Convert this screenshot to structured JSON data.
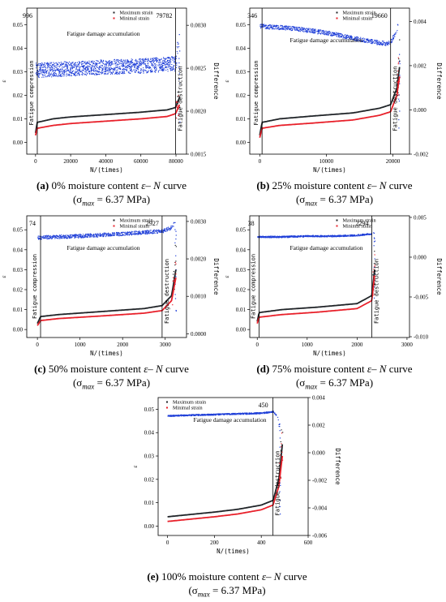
{
  "figure": {
    "caption_text_parts": {
      "moisture_suffix": "moisture content",
      "curve_label": "curve",
      "sigma_prefix": "(σ",
      "sigma_sub": "max",
      "sigma_value": " = 6.37 MPa)"
    }
  },
  "colors": {
    "max": "#202428",
    "min": "#e8202a",
    "diff": "#1f3fd8",
    "line": "#000000"
  },
  "chart_data": [
    {
      "type": "scatter",
      "panel_label": "(a)",
      "moisture": "0%",
      "xlabel": "N/(times)",
      "ylabel": "ε",
      "y2label": "Difference",
      "xlim": [
        -5000,
        86000
      ],
      "ylim": [
        -0.005,
        0.057
      ],
      "y2lim": [
        0.0015,
        0.0032
      ],
      "xticks": [
        0,
        20000,
        40000,
        60000,
        80000
      ],
      "xticklabels": [
        "0",
        "20000",
        "40000",
        "60000",
        "80000"
      ],
      "yticks": [
        0.0,
        0.01,
        0.02,
        0.03,
        0.04,
        0.05
      ],
      "yticklabels": [
        "0.00",
        "0.01",
        "0.02",
        "0.03",
        "0.04",
        "0.05"
      ],
      "y2ticks": [
        0.0015,
        0.002,
        0.0025,
        0.003
      ],
      "y2ticklabels": [
        "0.0015",
        "0.0020",
        "0.0025",
        "0.0030"
      ],
      "vlines": [
        996,
        79782
      ],
      "vline_labels": [
        "996",
        "79782"
      ],
      "annotations": {
        "accumulation": "Fatigue damage accumulation",
        "compression": "Fatigue compression",
        "destruction": "Fatigue destruction"
      },
      "legend": [
        "Maximum strain",
        "Minimal strain"
      ],
      "series": [
        {
          "name": "Maximum strain",
          "x": [
            0,
            996,
            10000,
            20000,
            40000,
            60000,
            75000,
            79782,
            82000
          ],
          "y": [
            0.004,
            0.0085,
            0.01,
            0.0108,
            0.0118,
            0.0128,
            0.0138,
            0.0148,
            0.019
          ]
        },
        {
          "name": "Minimal strain",
          "x": [
            0,
            996,
            10000,
            20000,
            40000,
            60000,
            75000,
            79782,
            82000
          ],
          "y": [
            0.003,
            0.006,
            0.0072,
            0.008,
            0.009,
            0.01,
            0.011,
            0.0122,
            0.016
          ]
        },
        {
          "name": "Difference",
          "x": [
            0,
            20000,
            40000,
            60000,
            79782,
            82000
          ],
          "y": [
            0.00248,
            0.0025,
            0.00252,
            0.00253,
            0.00256,
            0.003
          ]
        }
      ]
    },
    {
      "type": "scatter",
      "panel_label": "(b)",
      "moisture": "25%",
      "xlabel": "N/(times)",
      "ylabel": "ε",
      "y2label": "Difference",
      "xlim": [
        -1500,
        22500
      ],
      "ylim": [
        -0.005,
        0.057
      ],
      "y2lim": [
        -0.002,
        0.0046
      ],
      "xticks": [
        0,
        10000,
        20000
      ],
      "xticklabels": [
        "0",
        "10000",
        "20000"
      ],
      "yticks": [
        0.0,
        0.01,
        0.02,
        0.03,
        0.04,
        0.05
      ],
      "yticklabels": [
        "0.00",
        "0.01",
        "0.02",
        "0.03",
        "0.04",
        "0.05"
      ],
      "y2ticks": [
        -0.002,
        0.0,
        0.002,
        0.004
      ],
      "y2ticklabels": [
        "-0.002",
        "0.000",
        "0.002",
        "0.004"
      ],
      "vlines": [
        346,
        19660
      ],
      "vline_labels": [
        "346",
        "19660"
      ],
      "annotations": {
        "accumulation": "Fatigue damage accumulation",
        "compression": "Fatigue compression",
        "destruction": "Fatigue destruction"
      },
      "legend": [
        "Maximum strain",
        "Minimal strain"
      ],
      "series": [
        {
          "name": "Maximum strain",
          "x": [
            0,
            346,
            3000,
            8000,
            14000,
            18000,
            19660,
            20600,
            21000
          ],
          "y": [
            0.003,
            0.0085,
            0.01,
            0.0112,
            0.0125,
            0.0145,
            0.016,
            0.023,
            0.032
          ]
        },
        {
          "name": "Minimal strain",
          "x": [
            0,
            346,
            3000,
            8000,
            14000,
            18000,
            19660,
            20600,
            21000
          ],
          "y": [
            0.002,
            0.006,
            0.0072,
            0.0082,
            0.0095,
            0.0115,
            0.013,
            0.02,
            0.028
          ]
        },
        {
          "name": "Difference",
          "x": [
            0,
            5000,
            10000,
            15000,
            19000,
            19660,
            20500,
            21000
          ],
          "y": [
            0.0038,
            0.0037,
            0.0035,
            0.0032,
            0.003,
            0.0031,
            0.0036,
            0.0042
          ]
        }
      ]
    },
    {
      "type": "scatter",
      "panel_label": "(c)",
      "moisture": "50%",
      "xlabel": "N/(times)",
      "ylabel": "ε",
      "y2label": "Difference",
      "xlim": [
        -250,
        3500
      ],
      "ylim": [
        -0.004,
        0.057
      ],
      "y2lim": [
        -0.0001,
        0.00315
      ],
      "xticks": [
        0,
        1000,
        2000,
        3000
      ],
      "xticklabels": [
        "0",
        "1000",
        "2000",
        "3000"
      ],
      "yticks": [
        0.0,
        0.01,
        0.02,
        0.03,
        0.04,
        0.05
      ],
      "yticklabels": [
        "0.00",
        "0.01",
        "0.02",
        "0.03",
        "0.04",
        "0.05"
      ],
      "y2ticks": [
        0.0,
        0.001,
        0.002,
        0.003
      ],
      "y2ticklabels": [
        "0.0000",
        "0.0010",
        "0.0020",
        "0.0030"
      ],
      "vlines": [
        74,
        2927
      ],
      "vline_labels": [
        "74",
        "2927"
      ],
      "annotations": {
        "accumulation": "Fatigue damage accumulation",
        "compression": "Fatigue compression",
        "destruction": "Fatigue destruction"
      },
      "legend": [
        "Maximum strain",
        "Minimal strain"
      ],
      "series": [
        {
          "name": "Maximum strain",
          "x": [
            0,
            74,
            500,
            1500,
            2500,
            2927,
            3150,
            3250
          ],
          "y": [
            0.003,
            0.0065,
            0.0075,
            0.009,
            0.0105,
            0.012,
            0.017,
            0.03
          ]
        },
        {
          "name": "Minimal strain",
          "x": [
            0,
            74,
            500,
            1500,
            2500,
            2927,
            3150,
            3250
          ],
          "y": [
            0.002,
            0.0045,
            0.0055,
            0.0068,
            0.0082,
            0.0095,
            0.0145,
            0.026
          ]
        },
        {
          "name": "Difference",
          "x": [
            0,
            1000,
            2000,
            2927,
            3150,
            3250
          ],
          "y": [
            0.00258,
            0.00262,
            0.00268,
            0.00275,
            0.00285,
            0.00305
          ]
        }
      ]
    },
    {
      "type": "scatter",
      "panel_label": "(d)",
      "moisture": "75%",
      "xlabel": "N/(times)",
      "ylabel": "ε",
      "y2label": "Difference",
      "xlim": [
        -150,
        3050
      ],
      "ylim": [
        -0.004,
        0.057
      ],
      "y2lim": [
        -0.0101,
        0.0052
      ],
      "xticks": [
        0,
        1000,
        2000,
        3000
      ],
      "xticklabels": [
        "0",
        "1000",
        "2000",
        "3000"
      ],
      "yticks": [
        0.0,
        0.01,
        0.02,
        0.03,
        0.04,
        0.05
      ],
      "yticklabels": [
        "0.00",
        "0.01",
        "0.02",
        "0.03",
        "0.04",
        "0.05"
      ],
      "y2ticks": [
        -0.01,
        -0.005,
        0.0,
        0.005
      ],
      "y2ticklabels": [
        "-0.010",
        "-0.005",
        "0.000",
        "0.005"
      ],
      "vlines": [
        38,
        2294
      ],
      "vline_labels": [
        "38",
        "2294"
      ],
      "annotations": {
        "accumulation": "Fatigue damage accumulation",
        "compression": "Fatigue compression",
        "destruction": "Fatigue destruction"
      },
      "legend": [
        "Maximum strain",
        "Minimal strain"
      ],
      "series": [
        {
          "name": "Maximum strain",
          "x": [
            0,
            38,
            500,
            1200,
            2000,
            2294,
            2350
          ],
          "y": [
            0.004,
            0.0085,
            0.01,
            0.0112,
            0.013,
            0.017,
            0.03
          ]
        },
        {
          "name": "Minimal strain",
          "x": [
            0,
            38,
            500,
            1200,
            2000,
            2294,
            2350
          ],
          "y": [
            0.003,
            0.0062,
            0.0075,
            0.0087,
            0.0105,
            0.0145,
            0.027
          ]
        },
        {
          "name": "Difference",
          "x": [
            0,
            500,
            1000,
            1500,
            2000,
            2294,
            2350
          ],
          "y": [
            0.0026,
            0.0026,
            0.0027,
            0.0027,
            0.0028,
            0.003,
            0.0034
          ]
        }
      ]
    },
    {
      "type": "scatter",
      "panel_label": "(e)",
      "moisture": "100%",
      "xlabel": "N/(times)",
      "ylabel": "ε",
      "y2label": "Difference",
      "xlim": [
        -40,
        600
      ],
      "ylim": [
        -0.004,
        0.055
      ],
      "y2lim": [
        -0.006,
        0.004
      ],
      "xticks": [
        0,
        200,
        400,
        600
      ],
      "xticklabels": [
        "0",
        "200",
        "400",
        "600"
      ],
      "yticks": [
        0.0,
        0.01,
        0.02,
        0.03,
        0.04,
        0.05
      ],
      "yticklabels": [
        "0.00",
        "0.01",
        "0.02",
        "0.03",
        "0.04",
        "0.05"
      ],
      "y2ticks": [
        -0.006,
        -0.004,
        -0.002,
        0.0,
        0.002,
        0.004
      ],
      "y2ticklabels": [
        "-0.006",
        "-0.004",
        "-0.002",
        "0.000",
        "0.002",
        "0.004"
      ],
      "vlines": [
        450
      ],
      "vline_labels": [
        "450"
      ],
      "annotations": {
        "accumulation": "Fatigue damage accumulation",
        "compression": "",
        "destruction": "Fatigue destruction"
      },
      "legend": [
        "Maximum strain",
        "Minimal strain"
      ],
      "series": [
        {
          "name": "Maximum strain",
          "x": [
            0,
            100,
            200,
            300,
            400,
            450,
            475,
            490
          ],
          "y": [
            0.004,
            0.005,
            0.006,
            0.0072,
            0.009,
            0.011,
            0.02,
            0.035
          ]
        },
        {
          "name": "Minimal strain",
          "x": [
            0,
            100,
            200,
            300,
            400,
            450,
            475,
            490
          ],
          "y": [
            0.002,
            0.003,
            0.004,
            0.0052,
            0.007,
            0.009,
            0.017,
            0.03
          ]
        },
        {
          "name": "Difference",
          "x": [
            0,
            100,
            200,
            300,
            400,
            450,
            470,
            480
          ],
          "y": [
            0.0027,
            0.00275,
            0.0028,
            0.00285,
            0.0029,
            0.003,
            0.0026,
            0.001
          ]
        }
      ]
    }
  ]
}
